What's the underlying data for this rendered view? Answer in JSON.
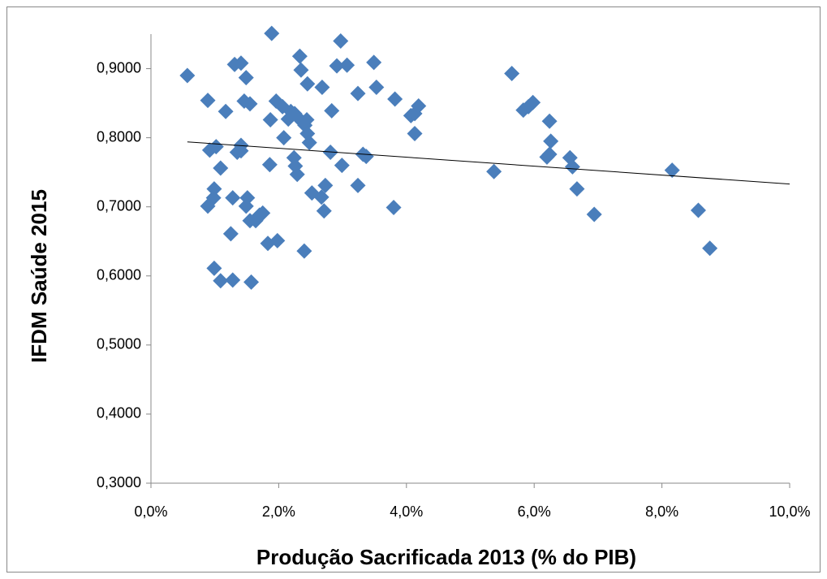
{
  "chart_data": {
    "type": "scatter",
    "x_label": "Produção Sacrificada 2013 (%  do PIB)",
    "y_label": "IFDM Saúde 2015",
    "color": "#4a7ebb",
    "xlim": [
      0,
      10
    ],
    "xticks": [
      {
        "value": 0,
        "label": "0,0%"
      },
      {
        "value": 2,
        "label": "2,0%"
      },
      {
        "value": 4,
        "label": "4,0%"
      },
      {
        "value": 6,
        "label": "6,0%"
      },
      {
        "value": 8,
        "label": "8,0%"
      },
      {
        "value": 10,
        "label": "10,0%"
      }
    ],
    "ylim": [
      0.3,
      0.95
    ],
    "yticks": [
      {
        "value": 0.3,
        "label": "0,3000"
      },
      {
        "value": 0.4,
        "label": "0,4000"
      },
      {
        "value": 0.5,
        "label": "0,5000"
      },
      {
        "value": 0.6,
        "label": "0,6000"
      },
      {
        "value": 0.7,
        "label": "0,7000"
      },
      {
        "value": 0.8,
        "label": "0,8000"
      },
      {
        "value": 0.9,
        "label": "0,9000"
      }
    ],
    "grid": false,
    "x": [
      0.57,
      0.89,
      0.92,
      1.02,
      0.99,
      0.98,
      0.89,
      0.99,
      1.09,
      1.09,
      1.17,
      1.25,
      1.28,
      1.28,
      1.31,
      1.41,
      1.49,
      1.46,
      1.55,
      1.41,
      1.35,
      1.41,
      1.51,
      1.49,
      1.57,
      1.55,
      1.64,
      1.7,
      1.75,
      1.83,
      1.98,
      1.86,
      1.87,
      1.89,
      1.96,
      2.06,
      2.08,
      2.15,
      2.19,
      2.25,
      2.33,
      2.35,
      2.24,
      2.26,
      2.29,
      2.36,
      2.41,
      2.44,
      2.45,
      2.45,
      2.48,
      2.4,
      2.52,
      2.68,
      2.67,
      2.71,
      2.73,
      2.81,
      2.83,
      2.91,
      2.97,
      3.07,
      2.99,
      3.24,
      3.24,
      3.32,
      3.37,
      3.49,
      3.53,
      3.82,
      3.8,
      4.07,
      4.13,
      4.19,
      4.13,
      5.37,
      5.65,
      5.83,
      5.91,
      5.98,
      6.24,
      6.26,
      6.24,
      6.2,
      6.56,
      6.6,
      6.67,
      6.94,
      8.16,
      8.57,
      8.75
    ],
    "values": [
      0.89,
      0.854,
      0.782,
      0.787,
      0.726,
      0.713,
      0.701,
      0.611,
      0.593,
      0.756,
      0.838,
      0.661,
      0.713,
      0.594,
      0.906,
      0.908,
      0.887,
      0.853,
      0.849,
      0.789,
      0.779,
      0.781,
      0.713,
      0.701,
      0.591,
      0.68,
      0.68,
      0.688,
      0.691,
      0.647,
      0.651,
      0.761,
      0.826,
      0.951,
      0.853,
      0.845,
      0.8,
      0.827,
      0.838,
      0.835,
      0.918,
      0.898,
      0.771,
      0.759,
      0.747,
      0.824,
      0.818,
      0.826,
      0.878,
      0.806,
      0.793,
      0.636,
      0.72,
      0.873,
      0.714,
      0.694,
      0.731,
      0.779,
      0.839,
      0.904,
      0.94,
      0.905,
      0.76,
      0.864,
      0.731,
      0.776,
      0.773,
      0.909,
      0.873,
      0.856,
      0.699,
      0.832,
      0.835,
      0.846,
      0.806,
      0.751,
      0.893,
      0.84,
      0.845,
      0.851,
      0.824,
      0.795,
      0.776,
      0.772,
      0.771,
      0.758,
      0.726,
      0.689,
      0.753,
      0.695,
      0.64
    ],
    "trendline": {
      "x": [
        0.57,
        10
      ],
      "y": [
        0.794,
        0.733
      ]
    }
  }
}
